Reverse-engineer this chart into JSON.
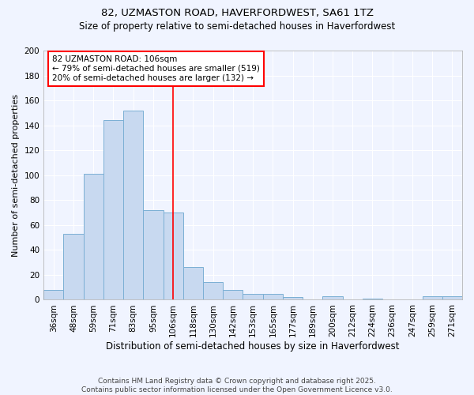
{
  "title_line1": "82, UZMASTON ROAD, HAVERFORDWEST, SA61 1TZ",
  "title_line2": "Size of property relative to semi-detached houses in Haverfordwest",
  "xlabel": "Distribution of semi-detached houses by size in Haverfordwest",
  "ylabel": "Number of semi-detached properties",
  "categories": [
    "36sqm",
    "48sqm",
    "59sqm",
    "71sqm",
    "83sqm",
    "95sqm",
    "106sqm",
    "118sqm",
    "130sqm",
    "142sqm",
    "153sqm",
    "165sqm",
    "177sqm",
    "189sqm",
    "200sqm",
    "212sqm",
    "224sqm",
    "236sqm",
    "247sqm",
    "259sqm",
    "271sqm"
  ],
  "values": [
    8,
    53,
    101,
    144,
    152,
    72,
    70,
    26,
    14,
    8,
    5,
    5,
    2,
    0,
    3,
    0,
    1,
    0,
    0,
    3,
    3
  ],
  "bar_color": "#c8d9f0",
  "bar_edge_color": "#7bafd4",
  "red_line_index": 6,
  "annotation_text_line1": "82 UZMASTON ROAD: 106sqm",
  "annotation_text_line2": "← 79% of semi-detached houses are smaller (519)",
  "annotation_text_line3": "20% of semi-detached houses are larger (132) →",
  "footnote_line1": "Contains HM Land Registry data © Crown copyright and database right 2025.",
  "footnote_line2": "Contains public sector information licensed under the Open Government Licence v3.0.",
  "ylim": [
    0,
    200
  ],
  "yticks": [
    0,
    20,
    40,
    60,
    80,
    100,
    120,
    140,
    160,
    180,
    200
  ],
  "background_color": "#f0f4ff",
  "plot_bg_color": "#f0f4ff",
  "grid_color": "#ffffff",
  "title_fontsize": 9.5,
  "subtitle_fontsize": 8.5,
  "xlabel_fontsize": 8.5,
  "ylabel_fontsize": 8,
  "tick_fontsize": 7.5,
  "annot_fontsize": 7.5,
  "footnote_fontsize": 6.5
}
